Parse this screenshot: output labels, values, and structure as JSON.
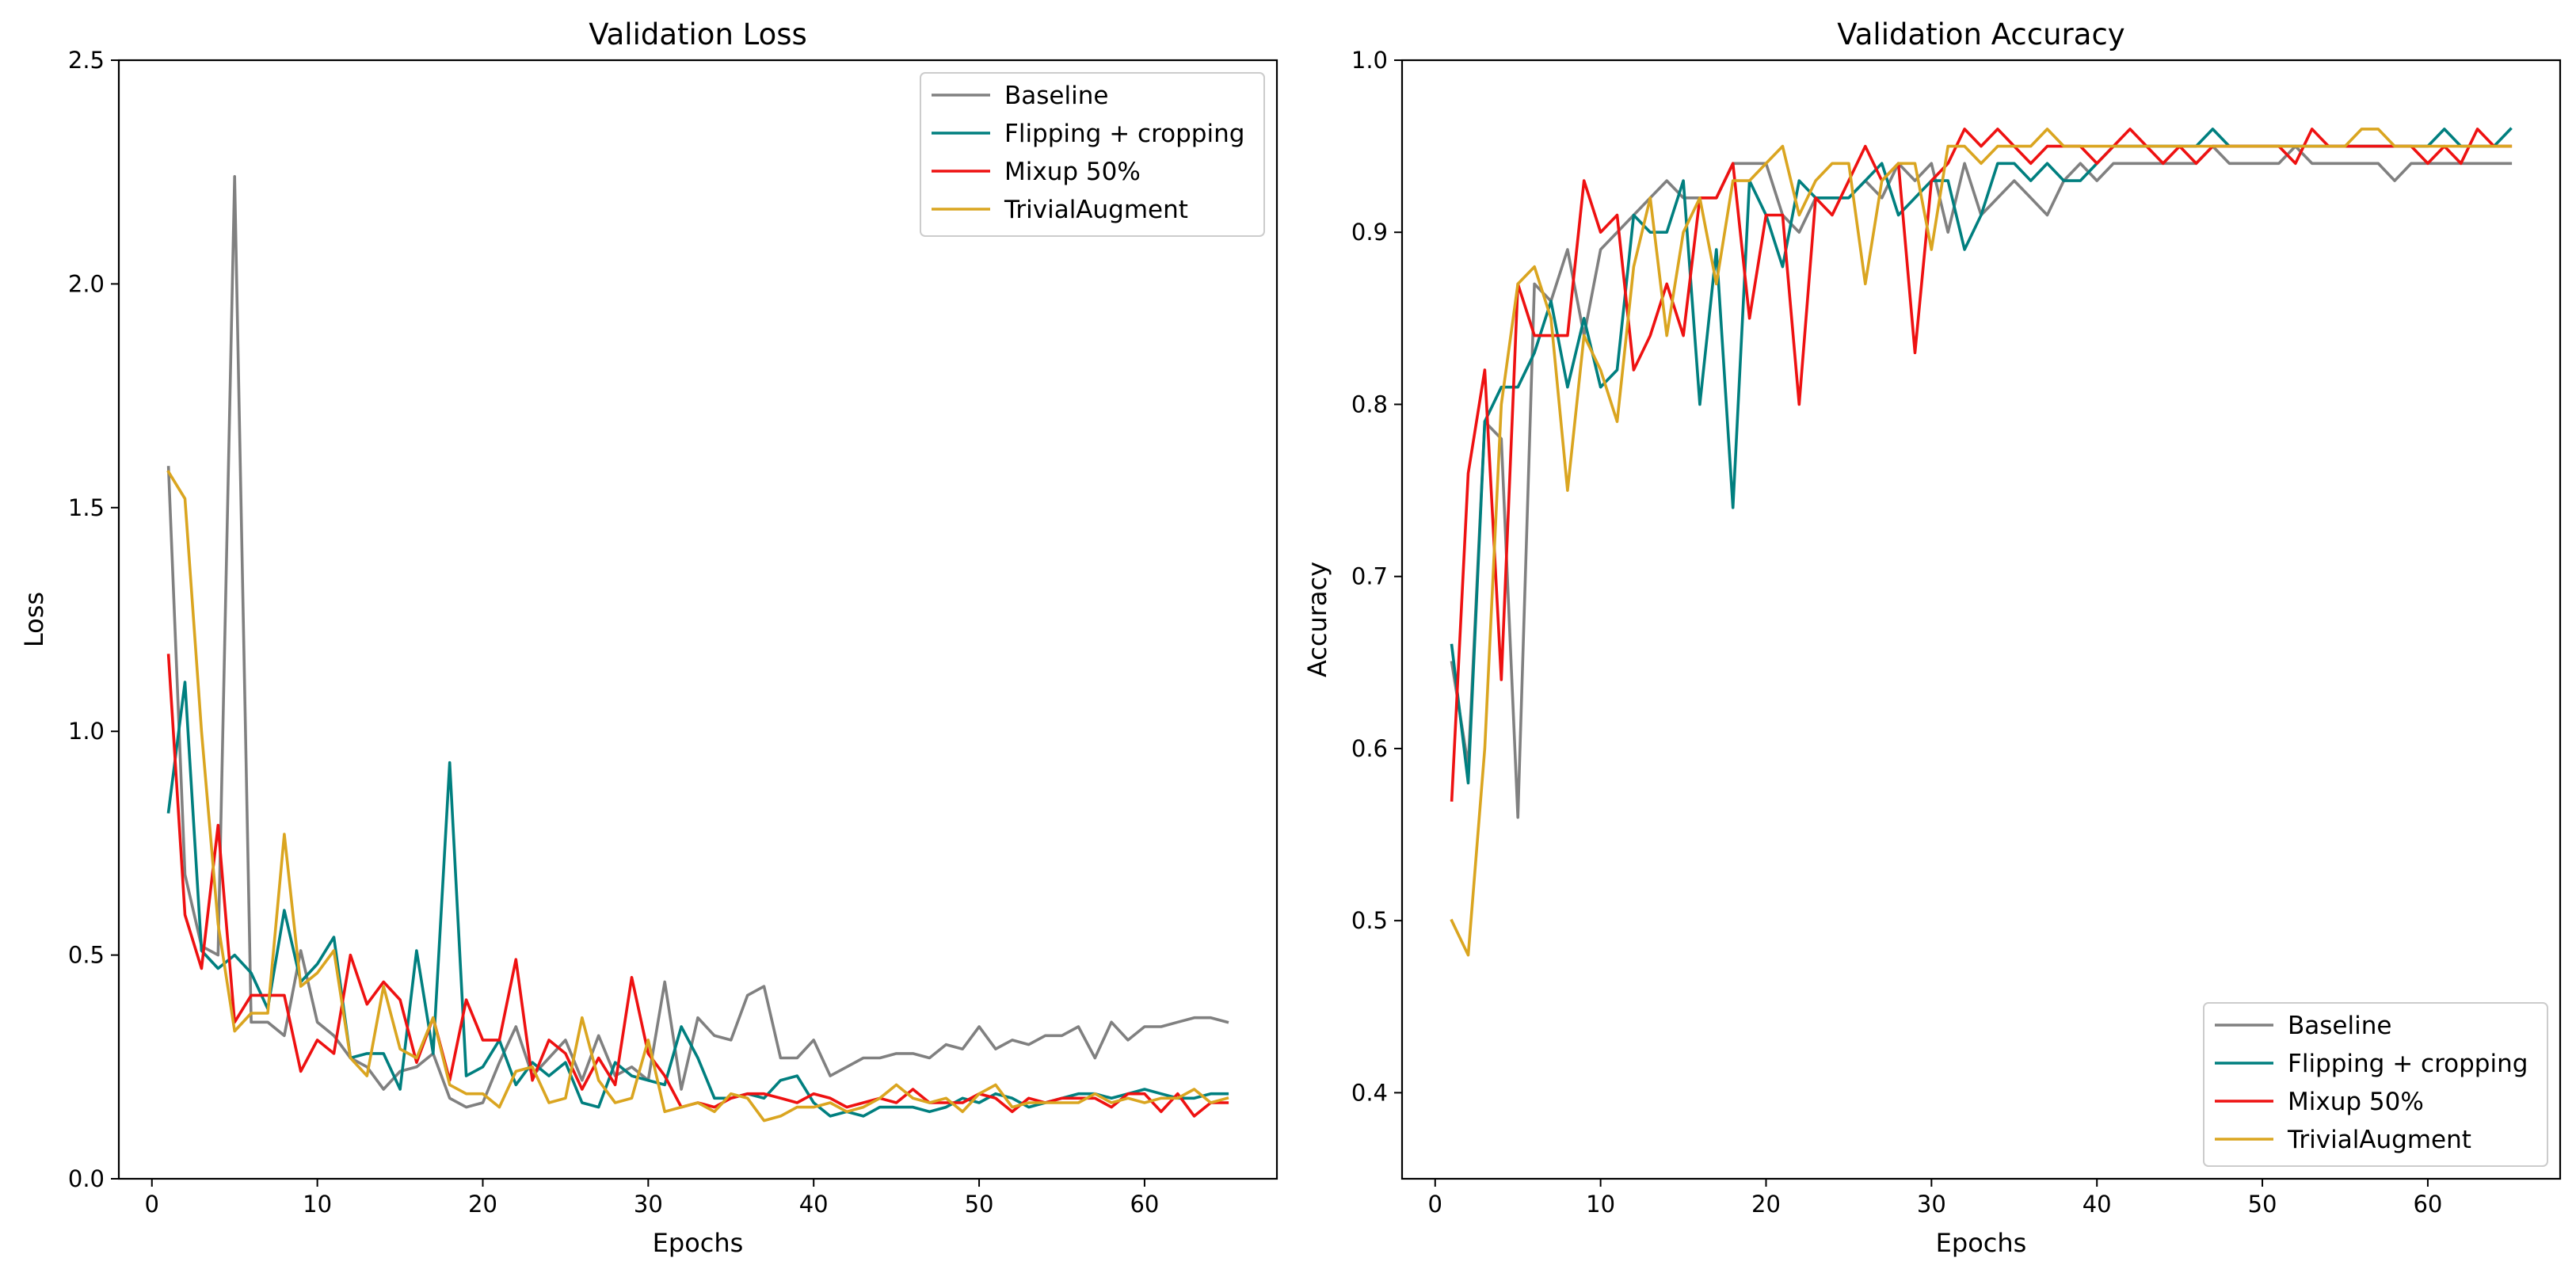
{
  "chart_data": [
    {
      "type": "line",
      "title": "Validation Loss",
      "xlabel": "Epochs",
      "ylabel": "Loss",
      "xlim": [
        -2,
        68
      ],
      "ylim": [
        0,
        2.5
      ],
      "xticks": [
        0,
        10,
        20,
        30,
        40,
        50,
        60
      ],
      "yticks": [
        0.0,
        0.5,
        1.0,
        1.5,
        2.0,
        2.5
      ],
      "ytick_labels": [
        "0.0",
        "0.5",
        "1.0",
        "1.5",
        "2.0",
        "2.5"
      ],
      "legend_position": "upper right",
      "grid": false,
      "x_start": 1,
      "series": [
        {
          "name": "Baseline",
          "color": "#808080",
          "values": [
            1.59,
            0.68,
            0.52,
            0.5,
            2.24,
            0.35,
            0.35,
            0.32,
            0.51,
            0.35,
            0.32,
            0.27,
            0.25,
            0.2,
            0.24,
            0.25,
            0.28,
            0.18,
            0.16,
            0.17,
            0.26,
            0.34,
            0.23,
            0.27,
            0.31,
            0.22,
            0.32,
            0.23,
            0.25,
            0.22,
            0.44,
            0.2,
            0.36,
            0.32,
            0.31,
            0.41,
            0.43,
            0.27,
            0.27,
            0.31,
            0.23,
            0.25,
            0.27,
            0.27,
            0.28,
            0.28,
            0.27,
            0.3,
            0.29,
            0.34,
            0.29,
            0.31,
            0.3,
            0.32,
            0.32,
            0.34,
            0.27,
            0.35,
            0.31,
            0.34,
            0.34,
            0.35,
            0.36,
            0.36,
            0.35
          ]
        },
        {
          "name": "Flipping + cropping",
          "color": "#007f7f",
          "values": [
            0.82,
            1.11,
            0.51,
            0.47,
            0.5,
            0.46,
            0.38,
            0.6,
            0.44,
            0.48,
            0.54,
            0.27,
            0.28,
            0.28,
            0.2,
            0.51,
            0.28,
            0.93,
            0.23,
            0.25,
            0.31,
            0.21,
            0.26,
            0.23,
            0.26,
            0.17,
            0.16,
            0.26,
            0.23,
            0.22,
            0.21,
            0.34,
            0.27,
            0.18,
            0.18,
            0.19,
            0.18,
            0.22,
            0.23,
            0.17,
            0.14,
            0.15,
            0.14,
            0.16,
            0.16,
            0.16,
            0.15,
            0.16,
            0.18,
            0.17,
            0.19,
            0.18,
            0.16,
            0.17,
            0.18,
            0.19,
            0.19,
            0.18,
            0.19,
            0.2,
            0.19,
            0.18,
            0.18,
            0.19,
            0.19
          ]
        },
        {
          "name": "Mixup 50%",
          "color": "#ee1111",
          "values": [
            1.17,
            0.59,
            0.47,
            0.79,
            0.35,
            0.41,
            0.41,
            0.41,
            0.24,
            0.31,
            0.28,
            0.5,
            0.39,
            0.44,
            0.4,
            0.26,
            0.36,
            0.22,
            0.4,
            0.31,
            0.31,
            0.49,
            0.22,
            0.31,
            0.28,
            0.2,
            0.27,
            0.21,
            0.45,
            0.28,
            0.23,
            0.16,
            0.17,
            0.16,
            0.18,
            0.19,
            0.19,
            0.18,
            0.17,
            0.19,
            0.18,
            0.16,
            0.17,
            0.18,
            0.17,
            0.2,
            0.17,
            0.17,
            0.17,
            0.19,
            0.18,
            0.15,
            0.18,
            0.17,
            0.18,
            0.18,
            0.18,
            0.16,
            0.19,
            0.19,
            0.15,
            0.19,
            0.14,
            0.17,
            0.17
          ]
        },
        {
          "name": "TrivialAugment",
          "color": "#daa520",
          "values": [
            1.58,
            1.52,
            1.0,
            0.57,
            0.33,
            0.37,
            0.37,
            0.77,
            0.43,
            0.46,
            0.51,
            0.27,
            0.23,
            0.43,
            0.29,
            0.27,
            0.36,
            0.21,
            0.19,
            0.19,
            0.16,
            0.24,
            0.25,
            0.17,
            0.18,
            0.36,
            0.22,
            0.17,
            0.18,
            0.31,
            0.15,
            0.16,
            0.17,
            0.15,
            0.19,
            0.18,
            0.13,
            0.14,
            0.16,
            0.16,
            0.17,
            0.15,
            0.16,
            0.18,
            0.21,
            0.18,
            0.17,
            0.18,
            0.15,
            0.19,
            0.21,
            0.16,
            0.17,
            0.17,
            0.17,
            0.17,
            0.19,
            0.17,
            0.18,
            0.17,
            0.18,
            0.18,
            0.2,
            0.17,
            0.18
          ]
        }
      ]
    },
    {
      "type": "line",
      "title": "Validation Accuracy",
      "xlabel": "Epochs",
      "ylabel": "Accuracy",
      "xlim": [
        -2,
        68
      ],
      "ylim": [
        0.35,
        1.0
      ],
      "xticks": [
        0,
        10,
        20,
        30,
        40,
        50,
        60
      ],
      "yticks": [
        0.4,
        0.5,
        0.6,
        0.7,
        0.8,
        0.9,
        1.0
      ],
      "ytick_labels": [
        "0.4",
        "0.5",
        "0.6",
        "0.7",
        "0.8",
        "0.9",
        "1.0"
      ],
      "legend_position": "lower right",
      "grid": false,
      "x_start": 1,
      "series": [
        {
          "name": "Baseline",
          "color": "#808080",
          "values": [
            0.65,
            0.59,
            0.79,
            0.78,
            0.56,
            0.87,
            0.86,
            0.89,
            0.84,
            0.89,
            0.9,
            0.91,
            0.92,
            0.93,
            0.92,
            0.92,
            0.92,
            0.94,
            0.94,
            0.94,
            0.91,
            0.9,
            0.92,
            0.92,
            0.92,
            0.93,
            0.92,
            0.94,
            0.93,
            0.94,
            0.9,
            0.94,
            0.91,
            0.92,
            0.93,
            0.92,
            0.91,
            0.93,
            0.94,
            0.93,
            0.94,
            0.94,
            0.94,
            0.94,
            0.94,
            0.94,
            0.95,
            0.94,
            0.94,
            0.94,
            0.94,
            0.95,
            0.94,
            0.94,
            0.94,
            0.94,
            0.94,
            0.93,
            0.94,
            0.94,
            0.94,
            0.94,
            0.94,
            0.94,
            0.94
          ]
        },
        {
          "name": "Flipping + cropping",
          "color": "#007f7f",
          "values": [
            0.66,
            0.58,
            0.79,
            0.81,
            0.81,
            0.83,
            0.86,
            0.81,
            0.85,
            0.81,
            0.82,
            0.91,
            0.9,
            0.9,
            0.93,
            0.8,
            0.89,
            0.74,
            0.93,
            0.91,
            0.88,
            0.93,
            0.92,
            0.92,
            0.92,
            0.93,
            0.94,
            0.91,
            0.92,
            0.93,
            0.93,
            0.89,
            0.91,
            0.94,
            0.94,
            0.93,
            0.94,
            0.93,
            0.93,
            0.94,
            0.95,
            0.95,
            0.95,
            0.95,
            0.95,
            0.95,
            0.96,
            0.95,
            0.95,
            0.95,
            0.95,
            0.95,
            0.95,
            0.95,
            0.95,
            0.95,
            0.95,
            0.95,
            0.95,
            0.95,
            0.96,
            0.95,
            0.95,
            0.95,
            0.96
          ]
        },
        {
          "name": "Mixup 50%",
          "color": "#ee1111",
          "values": [
            0.57,
            0.76,
            0.82,
            0.64,
            0.87,
            0.84,
            0.84,
            0.84,
            0.93,
            0.9,
            0.91,
            0.82,
            0.84,
            0.87,
            0.84,
            0.92,
            0.92,
            0.94,
            0.85,
            0.91,
            0.91,
            0.8,
            0.92,
            0.91,
            0.93,
            0.95,
            0.93,
            0.94,
            0.83,
            0.93,
            0.94,
            0.96,
            0.95,
            0.96,
            0.95,
            0.94,
            0.95,
            0.95,
            0.95,
            0.94,
            0.95,
            0.96,
            0.95,
            0.94,
            0.95,
            0.94,
            0.95,
            0.95,
            0.95,
            0.95,
            0.95,
            0.94,
            0.96,
            0.95,
            0.95,
            0.95,
            0.95,
            0.95,
            0.95,
            0.94,
            0.95,
            0.94,
            0.96,
            0.95,
            0.95
          ]
        },
        {
          "name": "TrivialAugment",
          "color": "#daa520",
          "values": [
            0.5,
            0.48,
            0.6,
            0.8,
            0.87,
            0.88,
            0.85,
            0.75,
            0.84,
            0.82,
            0.79,
            0.88,
            0.92,
            0.84,
            0.9,
            0.92,
            0.87,
            0.93,
            0.93,
            0.94,
            0.95,
            0.91,
            0.93,
            0.94,
            0.94,
            0.87,
            0.93,
            0.94,
            0.94,
            0.89,
            0.95,
            0.95,
            0.94,
            0.95,
            0.95,
            0.95,
            0.96,
            0.95,
            0.95,
            0.95,
            0.95,
            0.95,
            0.95,
            0.95,
            0.95,
            0.95,
            0.95,
            0.95,
            0.95,
            0.95,
            0.95,
            0.95,
            0.95,
            0.95,
            0.95,
            0.96,
            0.96,
            0.95,
            0.95,
            0.95,
            0.95,
            0.95,
            0.95,
            0.95,
            0.95
          ]
        }
      ]
    }
  ]
}
